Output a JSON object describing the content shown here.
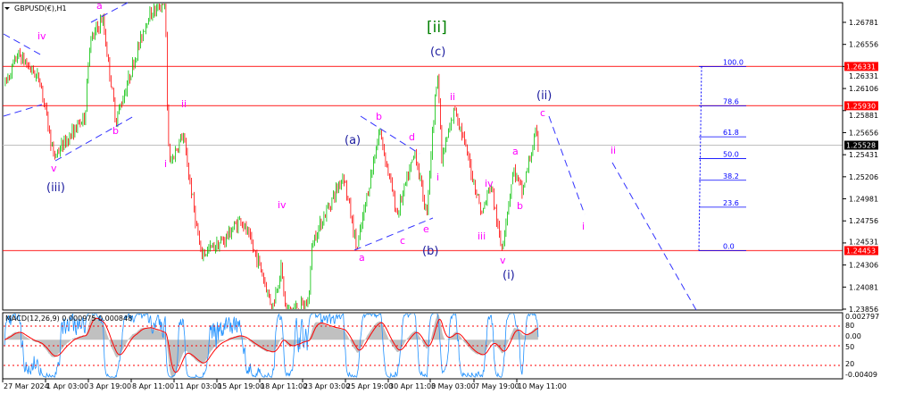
{
  "chart_data": {
    "type": "candlestick",
    "symbol_title": "GBPUSD(€),H1",
    "ylim": [
      1.23856,
      1.26781
    ],
    "y_ticks": [
      "1.26781",
      "1.26556",
      "1.26331",
      "1.26106",
      "1.25881",
      "1.25656",
      "1.25431",
      "1.25206",
      "1.24981",
      "1.24756",
      "1.24531",
      "1.24306",
      "1.24081",
      "1.23856"
    ],
    "x_ticks": [
      {
        "label": "27 Mar 2024",
        "time": "2024-03-27T11:00"
      },
      {
        "label": "1 Apr 03:00",
        "time": "2024-04-01T03:00"
      },
      {
        "label": "3 Apr 19:00",
        "time": "2024-04-03T19:00"
      },
      {
        "label": "8 Apr 11:00",
        "time": "2024-04-08T11:00"
      },
      {
        "label": "11 Apr 03:00",
        "time": "2024-04-11T03:00"
      },
      {
        "label": "15 Apr 19:00",
        "time": "2024-04-15T19:00"
      },
      {
        "label": "18 Apr 11:00",
        "time": "2024-04-18T11:00"
      },
      {
        "label": "23 Apr 03:00",
        "time": "2024-04-23T03:00"
      },
      {
        "label": "25 Apr 19:00",
        "time": "2024-04-25T19:00"
      },
      {
        "label": "30 Apr 11:00",
        "time": "2024-04-30T11:00"
      },
      {
        "label": "3 May 03:00",
        "time": "2024-05-03T03:00"
      },
      {
        "label": "7 May 19:00",
        "time": "2024-05-07T19:00"
      },
      {
        "label": "10 May 11:00",
        "time": "2024-05-10T11:00"
      }
    ],
    "price_path": [
      [
        "2024-03-27T16:00",
        1.2614
      ],
      [
        "2024-03-29T03:00",
        1.2646
      ],
      [
        "2024-03-31T13:00",
        1.2619
      ],
      [
        "2024-04-01T15:00",
        1.2541
      ],
      [
        "2024-04-03T14:00",
        1.2582
      ],
      [
        "2024-04-03T21:00",
        1.2655
      ],
      [
        "2024-04-05T08:00",
        1.2683
      ],
      [
        "2024-04-06T19:00",
        1.2578
      ],
      [
        "2024-04-09T11:00",
        1.2683
      ],
      [
        "2024-04-10T14:00",
        1.2701
      ],
      [
        "2024-04-10T16:00",
        1.261
      ],
      [
        "2024-04-10T20:00",
        1.2532
      ],
      [
        "2024-04-12T02:00",
        1.2564
      ],
      [
        "2024-04-14T01:00",
        1.2441
      ],
      [
        "2024-04-16T04:00",
        1.2455
      ],
      [
        "2024-04-17T07:00",
        1.2478
      ],
      [
        "2024-04-18T10:00",
        1.2432
      ],
      [
        "2024-04-19T20:00",
        1.2387
      ],
      [
        "2024-04-20T19:00",
        1.2428
      ],
      [
        "2024-04-21T07:00",
        1.2384
      ],
      [
        "2024-04-23T11:00",
        1.2391
      ],
      [
        "2024-04-23T18:00",
        1.2455
      ],
      [
        "2024-04-25T16:00",
        1.2523
      ],
      [
        "2024-04-27T01:00",
        1.2446
      ],
      [
        "2024-04-29T12:00",
        1.2569
      ],
      [
        "2024-05-01T00:00",
        1.2482
      ],
      [
        "2024-05-02T03:00",
        1.2546
      ],
      [
        "2024-05-02T20:00",
        1.2482
      ],
      [
        "2024-05-03T22:00",
        1.2633
      ],
      [
        "2024-05-04T09:00",
        1.2537
      ],
      [
        "2024-05-05T20:00",
        1.2592
      ],
      [
        "2024-05-06T20:00",
        1.2555
      ],
      [
        "2024-05-08T07:00",
        1.2482
      ],
      [
        "2024-05-08T20:00",
        1.2514
      ],
      [
        "2024-05-09T12:00",
        1.2446
      ],
      [
        "2024-05-10T06:00",
        1.2528
      ],
      [
        "2024-05-10T19:00",
        1.2505
      ],
      [
        "2024-05-11T15:00",
        1.2564
      ],
      [
        "2024-05-11T19:00",
        1.25528
      ]
    ],
    "horizontal_levels": [
      {
        "price": 1.26331,
        "label": "1.26331",
        "color": "#ff0000"
      },
      {
        "price": 1.2593,
        "label": "1.25930",
        "color": "#ff0000"
      },
      {
        "price": 1.24453,
        "label": "1.24453",
        "color": "#ff0000"
      }
    ],
    "current_price": {
      "price": 1.25528,
      "label": "1.25528"
    },
    "fibonacci": {
      "high": 1.26331,
      "low": 1.24453,
      "levels": [
        "100.0",
        "78.6",
        "61.8",
        "50.0",
        "38.2",
        "23.6",
        "0.0"
      ],
      "color": "#0000ff"
    },
    "wave_labels": [
      {
        "text": "iv",
        "color": "#ff00ff"
      },
      {
        "text": "a",
        "color": "#ff00ff"
      },
      {
        "text": "v",
        "color": "#ff00ff"
      },
      {
        "text": "b",
        "color": "#ff00ff"
      },
      {
        "text": "ii",
        "color": "#ff00ff"
      },
      {
        "text": "i",
        "color": "#ff00ff"
      },
      {
        "text": "iv",
        "color": "#ff00ff"
      },
      {
        "text": "a",
        "color": "#ff00ff"
      },
      {
        "text": "b",
        "color": "#ff00ff"
      },
      {
        "text": "c",
        "color": "#ff00ff"
      },
      {
        "text": "d",
        "color": "#ff00ff"
      },
      {
        "text": "e",
        "color": "#ff00ff"
      },
      {
        "text": "i",
        "color": "#ff00ff"
      },
      {
        "text": "ii",
        "color": "#ff00ff"
      },
      {
        "text": "iv",
        "color": "#ff00ff"
      },
      {
        "text": "iii",
        "color": "#ff00ff"
      },
      {
        "text": "v",
        "color": "#ff00ff"
      },
      {
        "text": "a",
        "color": "#ff00ff"
      },
      {
        "text": "b",
        "color": "#ff00ff"
      },
      {
        "text": "c",
        "color": "#ff00ff"
      },
      {
        "text": "i",
        "color": "#ff00ff"
      },
      {
        "text": "ii",
        "color": "#ff00ff"
      },
      {
        "text": "(iii)",
        "color": "#1a1a9e"
      },
      {
        "text": "(a)",
        "color": "#1a1a9e"
      },
      {
        "text": "(b)",
        "color": "#1a1a9e"
      },
      {
        "text": "(c)",
        "color": "#1a1a9e"
      },
      {
        "text": "(i)",
        "color": "#1a1a9e"
      },
      {
        "text": "(ii)",
        "color": "#1a1a9e"
      },
      {
        "text": "[ii]",
        "color": "#008000"
      }
    ],
    "indicator": {
      "title": "MACD(12,26,9) 0.000975 0.000848",
      "ylim": [
        -0.00409,
        0.002797
      ],
      "right_labels": [
        "0.002797",
        "80",
        "0.00",
        "50",
        "20",
        "-0.00409"
      ],
      "levels": [
        80,
        50,
        20
      ]
    },
    "colors": {
      "bull": "#00c000",
      "bear": "#ff0000",
      "macd_hist": "#c0c0c0",
      "signal": "#ff0000",
      "line": "#1e90ff",
      "trend": "#0000ff"
    }
  }
}
